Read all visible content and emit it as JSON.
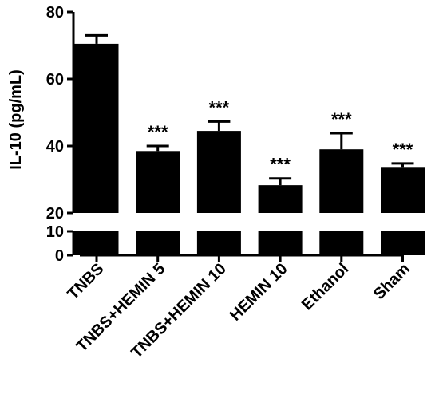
{
  "chart_data": {
    "type": "bar",
    "title": "",
    "xlabel": "",
    "ylabel": "IL-10 (pg/mL)",
    "axis_break": true,
    "y_upper_segment": {
      "range": [
        20,
        80
      ],
      "ticks": [
        "20",
        "40",
        "60",
        "80"
      ]
    },
    "y_lower_segment": {
      "range": [
        0,
        10
      ],
      "ticks": [
        "0",
        "10"
      ]
    },
    "grid": false,
    "legend": "none",
    "categories": [
      "TNBS",
      "TNBS+HEMIN 5",
      "TNBS+HEMIN 10",
      "HEMIN 10",
      "Ethanol",
      "Sham"
    ],
    "values": [
      70.5,
      38.5,
      44.5,
      28.3,
      39,
      33.5
    ],
    "error_upper": [
      73,
      40,
      47.3,
      30.3,
      43.8,
      34.8
    ],
    "annotations": [
      "",
      "***",
      "***",
      "***",
      "***",
      "***"
    ],
    "bar_color": "#000000"
  }
}
